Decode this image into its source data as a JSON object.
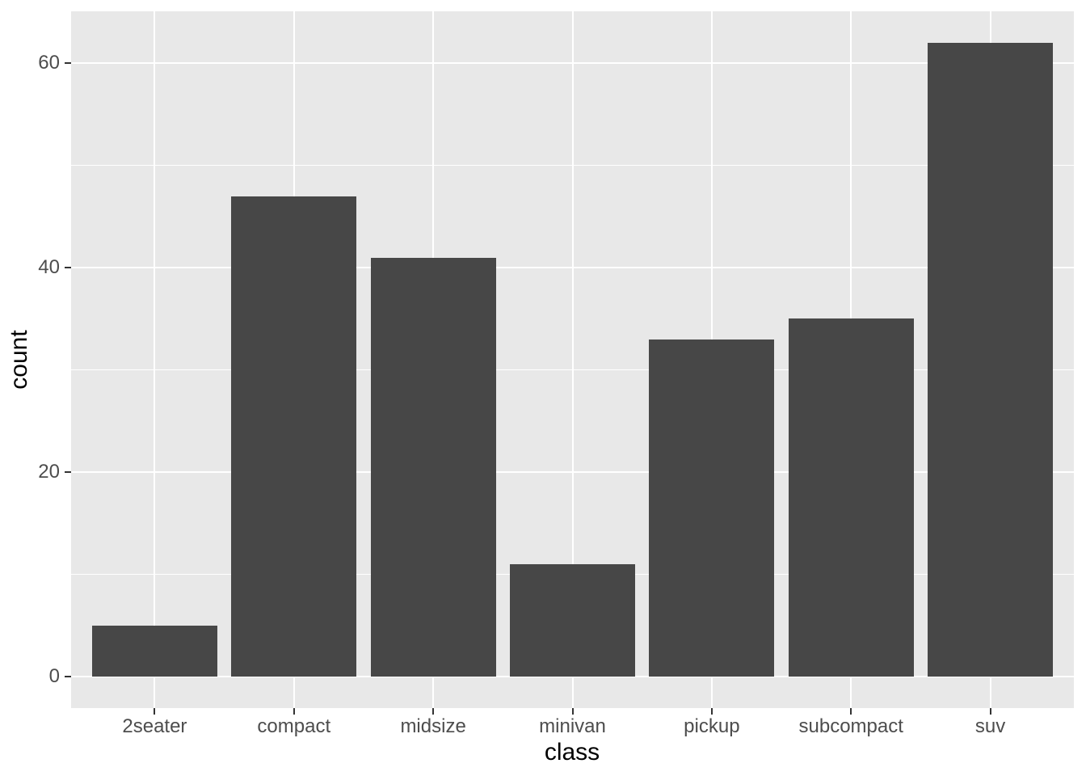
{
  "chart_data": {
    "type": "bar",
    "title": "",
    "xlabel": "class",
    "ylabel": "count",
    "categories": [
      "2seater",
      "compact",
      "midsize",
      "minivan",
      "pickup",
      "subcompact",
      "suv"
    ],
    "values": [
      5,
      47,
      41,
      11,
      33,
      35,
      62
    ],
    "yticks": [
      0,
      20,
      40,
      60
    ],
    "yminorticks": [
      10,
      30,
      50
    ],
    "ylim": [
      -3.1,
      65.1
    ],
    "bar_width_fraction": 0.9,
    "grid": "white major and minor horizontal lines, white major vertical lines at category centers",
    "legend": "none",
    "colors": {
      "bar_fill": "#474747",
      "panel_background": "#e8e8e8",
      "gridline": "#ffffff",
      "axis_text": "#4d4d4d",
      "tick_mark": "#333333",
      "axis_title": "#000000",
      "figure_background": "#ffffff"
    }
  }
}
